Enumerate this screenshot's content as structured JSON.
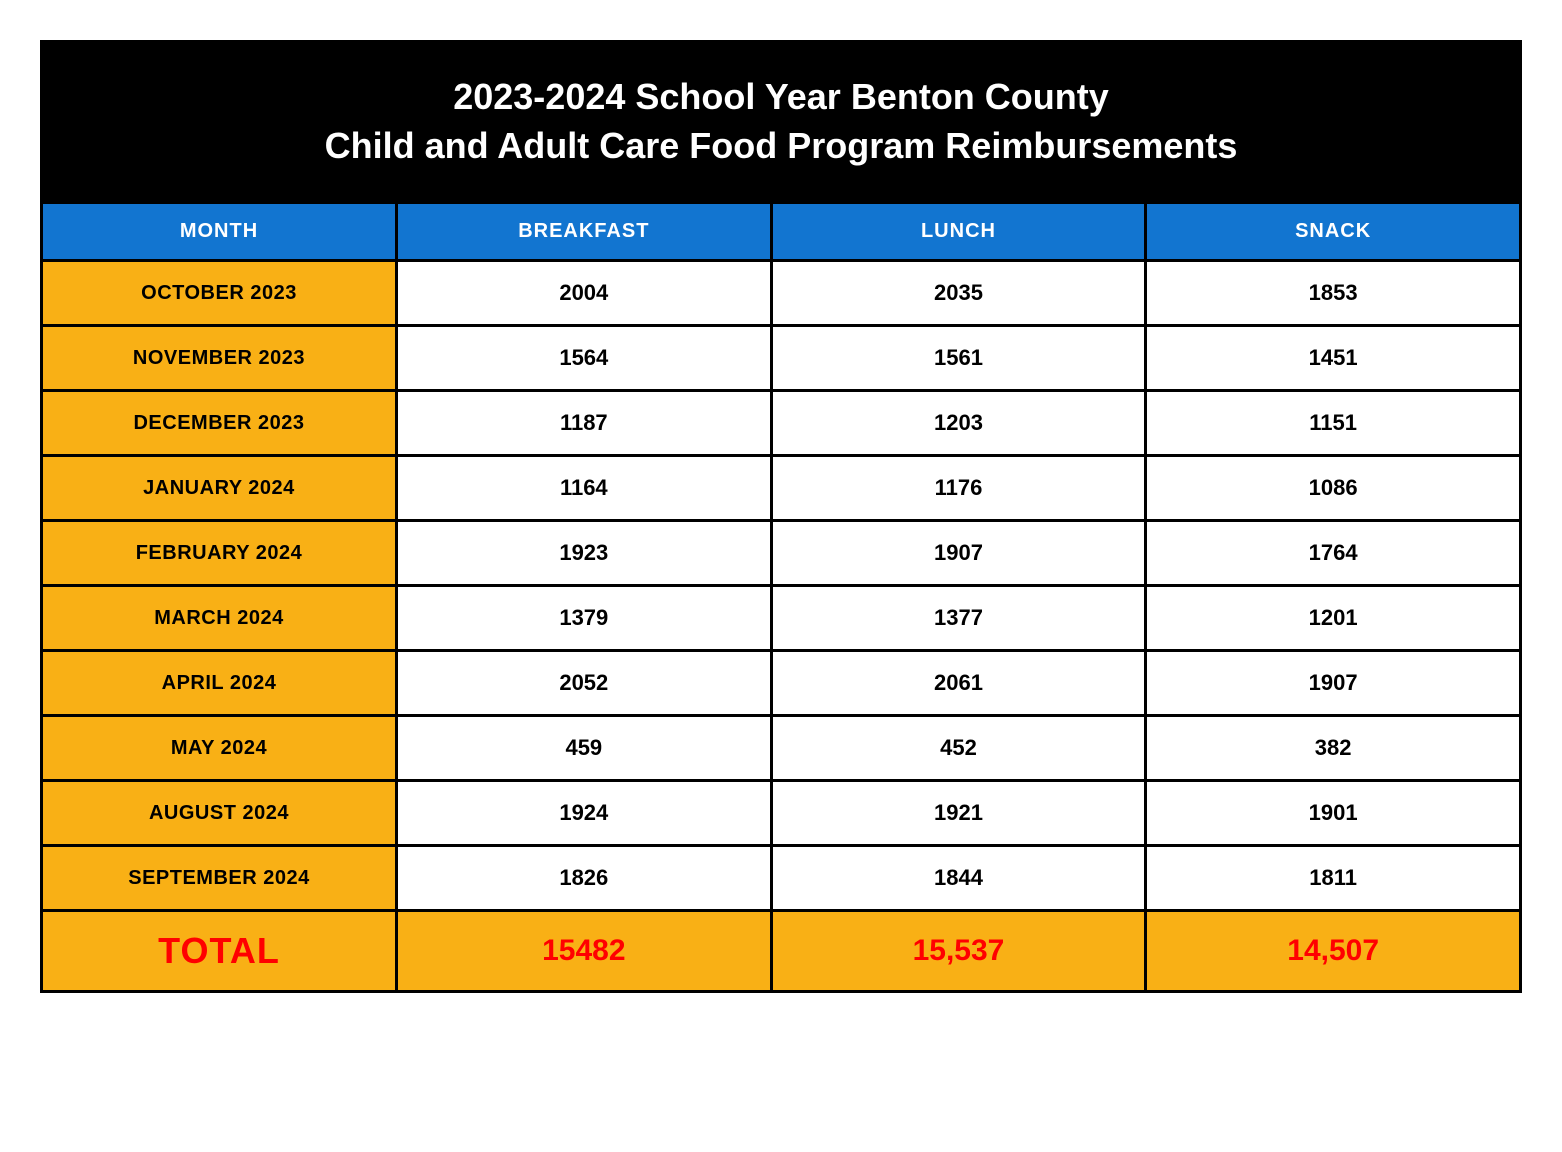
{
  "header": {
    "line1": "2023-2024 School Year Benton County",
    "line2": "Child and Adult Care Food Program Reimbursements"
  },
  "columns": [
    "MONTH",
    "BREAKFAST",
    "LUNCH",
    "SNACK"
  ],
  "rows": [
    {
      "month": "OCTOBER 2023",
      "breakfast": "2004",
      "lunch": "2035",
      "snack": "1853"
    },
    {
      "month": "NOVEMBER 2023",
      "breakfast": "1564",
      "lunch": "1561",
      "snack": "1451"
    },
    {
      "month": "DECEMBER 2023",
      "breakfast": "1187",
      "lunch": "1203",
      "snack": "1151"
    },
    {
      "month": "JANUARY 2024",
      "breakfast": "1164",
      "lunch": "1176",
      "snack": "1086"
    },
    {
      "month": "FEBRUARY 2024",
      "breakfast": "1923",
      "lunch": "1907",
      "snack": "1764"
    },
    {
      "month": "MARCH 2024",
      "breakfast": "1379",
      "lunch": "1377",
      "snack": "1201"
    },
    {
      "month": "APRIL 2024",
      "breakfast": "2052",
      "lunch": "2061",
      "snack": "1907"
    },
    {
      "month": "MAY 2024",
      "breakfast": "459",
      "lunch": "452",
      "snack": "382"
    },
    {
      "month": "AUGUST 2024",
      "breakfast": "1924",
      "lunch": "1921",
      "snack": "1901"
    },
    {
      "month": "SEPTEMBER 2024",
      "breakfast": "1826",
      "lunch": "1844",
      "snack": "1811"
    }
  ],
  "total": {
    "label": "TOTAL",
    "breakfast": "15482",
    "lunch": "15,537",
    "snack": "14,507"
  },
  "styles": {
    "header_bg": "#000000",
    "header_text": "#ffffff",
    "th_bg": "#1275d0",
    "th_text": "#ffffff",
    "month_bg": "#f9b015",
    "cell_bg": "#ffffff",
    "cell_text": "#000000",
    "total_text": "#ff0000",
    "border_color": "#000000",
    "header_fontsize": 36,
    "th_fontsize": 20,
    "cell_fontsize": 22,
    "total_fontsize": 30,
    "total_label_fontsize": 36
  }
}
